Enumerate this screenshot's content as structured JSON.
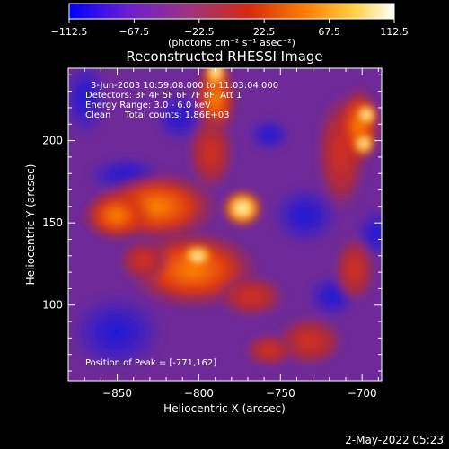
{
  "colorbar": {
    "ticks": [
      "−112.5",
      "−67.5",
      "−22.5",
      "22.5",
      "67.5",
      "112.5"
    ],
    "unit_label": "(photons cm⁻² s⁻¹ asec⁻²)",
    "colors": [
      "#0000ff",
      "#6a1fcf",
      "#a0357a",
      "#d22a10",
      "#ff7a00",
      "#ffd24a",
      "#ffffff"
    ]
  },
  "annotations": {
    "time": "3-Jun-2003 10:59:08.000 to 11:03:04.000",
    "detectors": "Detectors: 3F 4F 5F 6F 7F 8F, Att 1",
    "energy": "Energy Range: 3.0 - 6.0 keV",
    "clean": "Clean     Total counts: 1.86E+03",
    "peak": "Position of Peak = [-771,162]"
  },
  "timestamp": "2-May-2022 05:23",
  "chart_data": {
    "type": "heatmap",
    "title": "Reconstructed RHESSI Image",
    "xlabel": "Heliocentric X (arcsec)",
    "ylabel": "Heliocentric Y (arcsec)",
    "xlim": [
      -880,
      -688
    ],
    "ylim": [
      54,
      244
    ],
    "xticks": [
      -850,
      -800,
      -750,
      -700
    ],
    "yticks": [
      100,
      150,
      200
    ],
    "xtick_labels": [
      "−850",
      "−800",
      "−750",
      "−700"
    ],
    "ytick_labels": [
      "100",
      "150",
      "200"
    ],
    "peak": {
      "x": -771,
      "y": 162
    },
    "colorbar_range": [
      -112.5,
      112.5
    ]
  }
}
